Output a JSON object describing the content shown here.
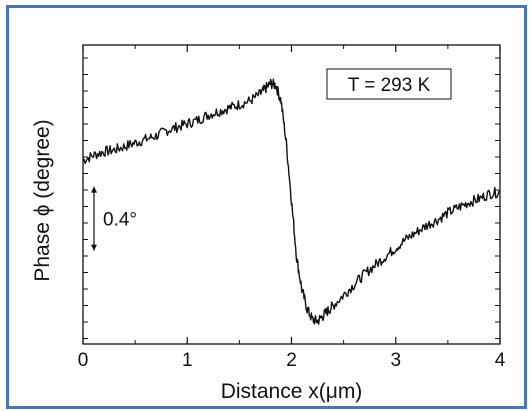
{
  "chart_data": {
    "type": "line",
    "xlabel": "Distance x(μm)",
    "ylabel": "Phase ϕ (degree)",
    "xlim": [
      0,
      4
    ],
    "x_ticks": [
      "0",
      "1",
      "2",
      "3",
      "4"
    ],
    "y_ticks_labeled": false,
    "scale_bar": {
      "label": "0.4°",
      "value": 0.4
    },
    "annotation": "T = 293 K",
    "grid": false,
    "frame_color": "#4a76b8",
    "line_color": "#111111",
    "series": [
      {
        "x": [
          0.0,
          0.1,
          0.2,
          0.3,
          0.4,
          0.5,
          0.6,
          0.7,
          0.8,
          0.9,
          1.0,
          1.1,
          1.2,
          1.3,
          1.4,
          1.5,
          1.6,
          1.7,
          1.75,
          1.8,
          1.85,
          1.9,
          1.95,
          2.0,
          2.05,
          2.1,
          2.15,
          2.2,
          2.25,
          2.3,
          2.35,
          2.4,
          2.5,
          2.6,
          2.7,
          2.8,
          2.9,
          3.0,
          3.1,
          3.2,
          3.3,
          3.4,
          3.5,
          3.6,
          3.7,
          3.8,
          3.9,
          4.0
        ],
        "y": [
          0.0,
          0.03,
          0.05,
          0.06,
          0.08,
          0.1,
          0.12,
          0.14,
          0.17,
          0.19,
          0.21,
          0.23,
          0.26,
          0.28,
          0.3,
          0.32,
          0.34,
          0.38,
          0.41,
          0.44,
          0.43,
          0.34,
          0.1,
          -0.23,
          -0.56,
          -0.74,
          -0.85,
          -0.91,
          -0.92,
          -0.89,
          -0.86,
          -0.83,
          -0.77,
          -0.71,
          -0.65,
          -0.6,
          -0.55,
          -0.5,
          -0.45,
          -0.41,
          -0.37,
          -0.34,
          -0.3,
          -0.27,
          -0.24,
          -0.22,
          -0.19,
          -0.18
        ]
      }
    ]
  }
}
